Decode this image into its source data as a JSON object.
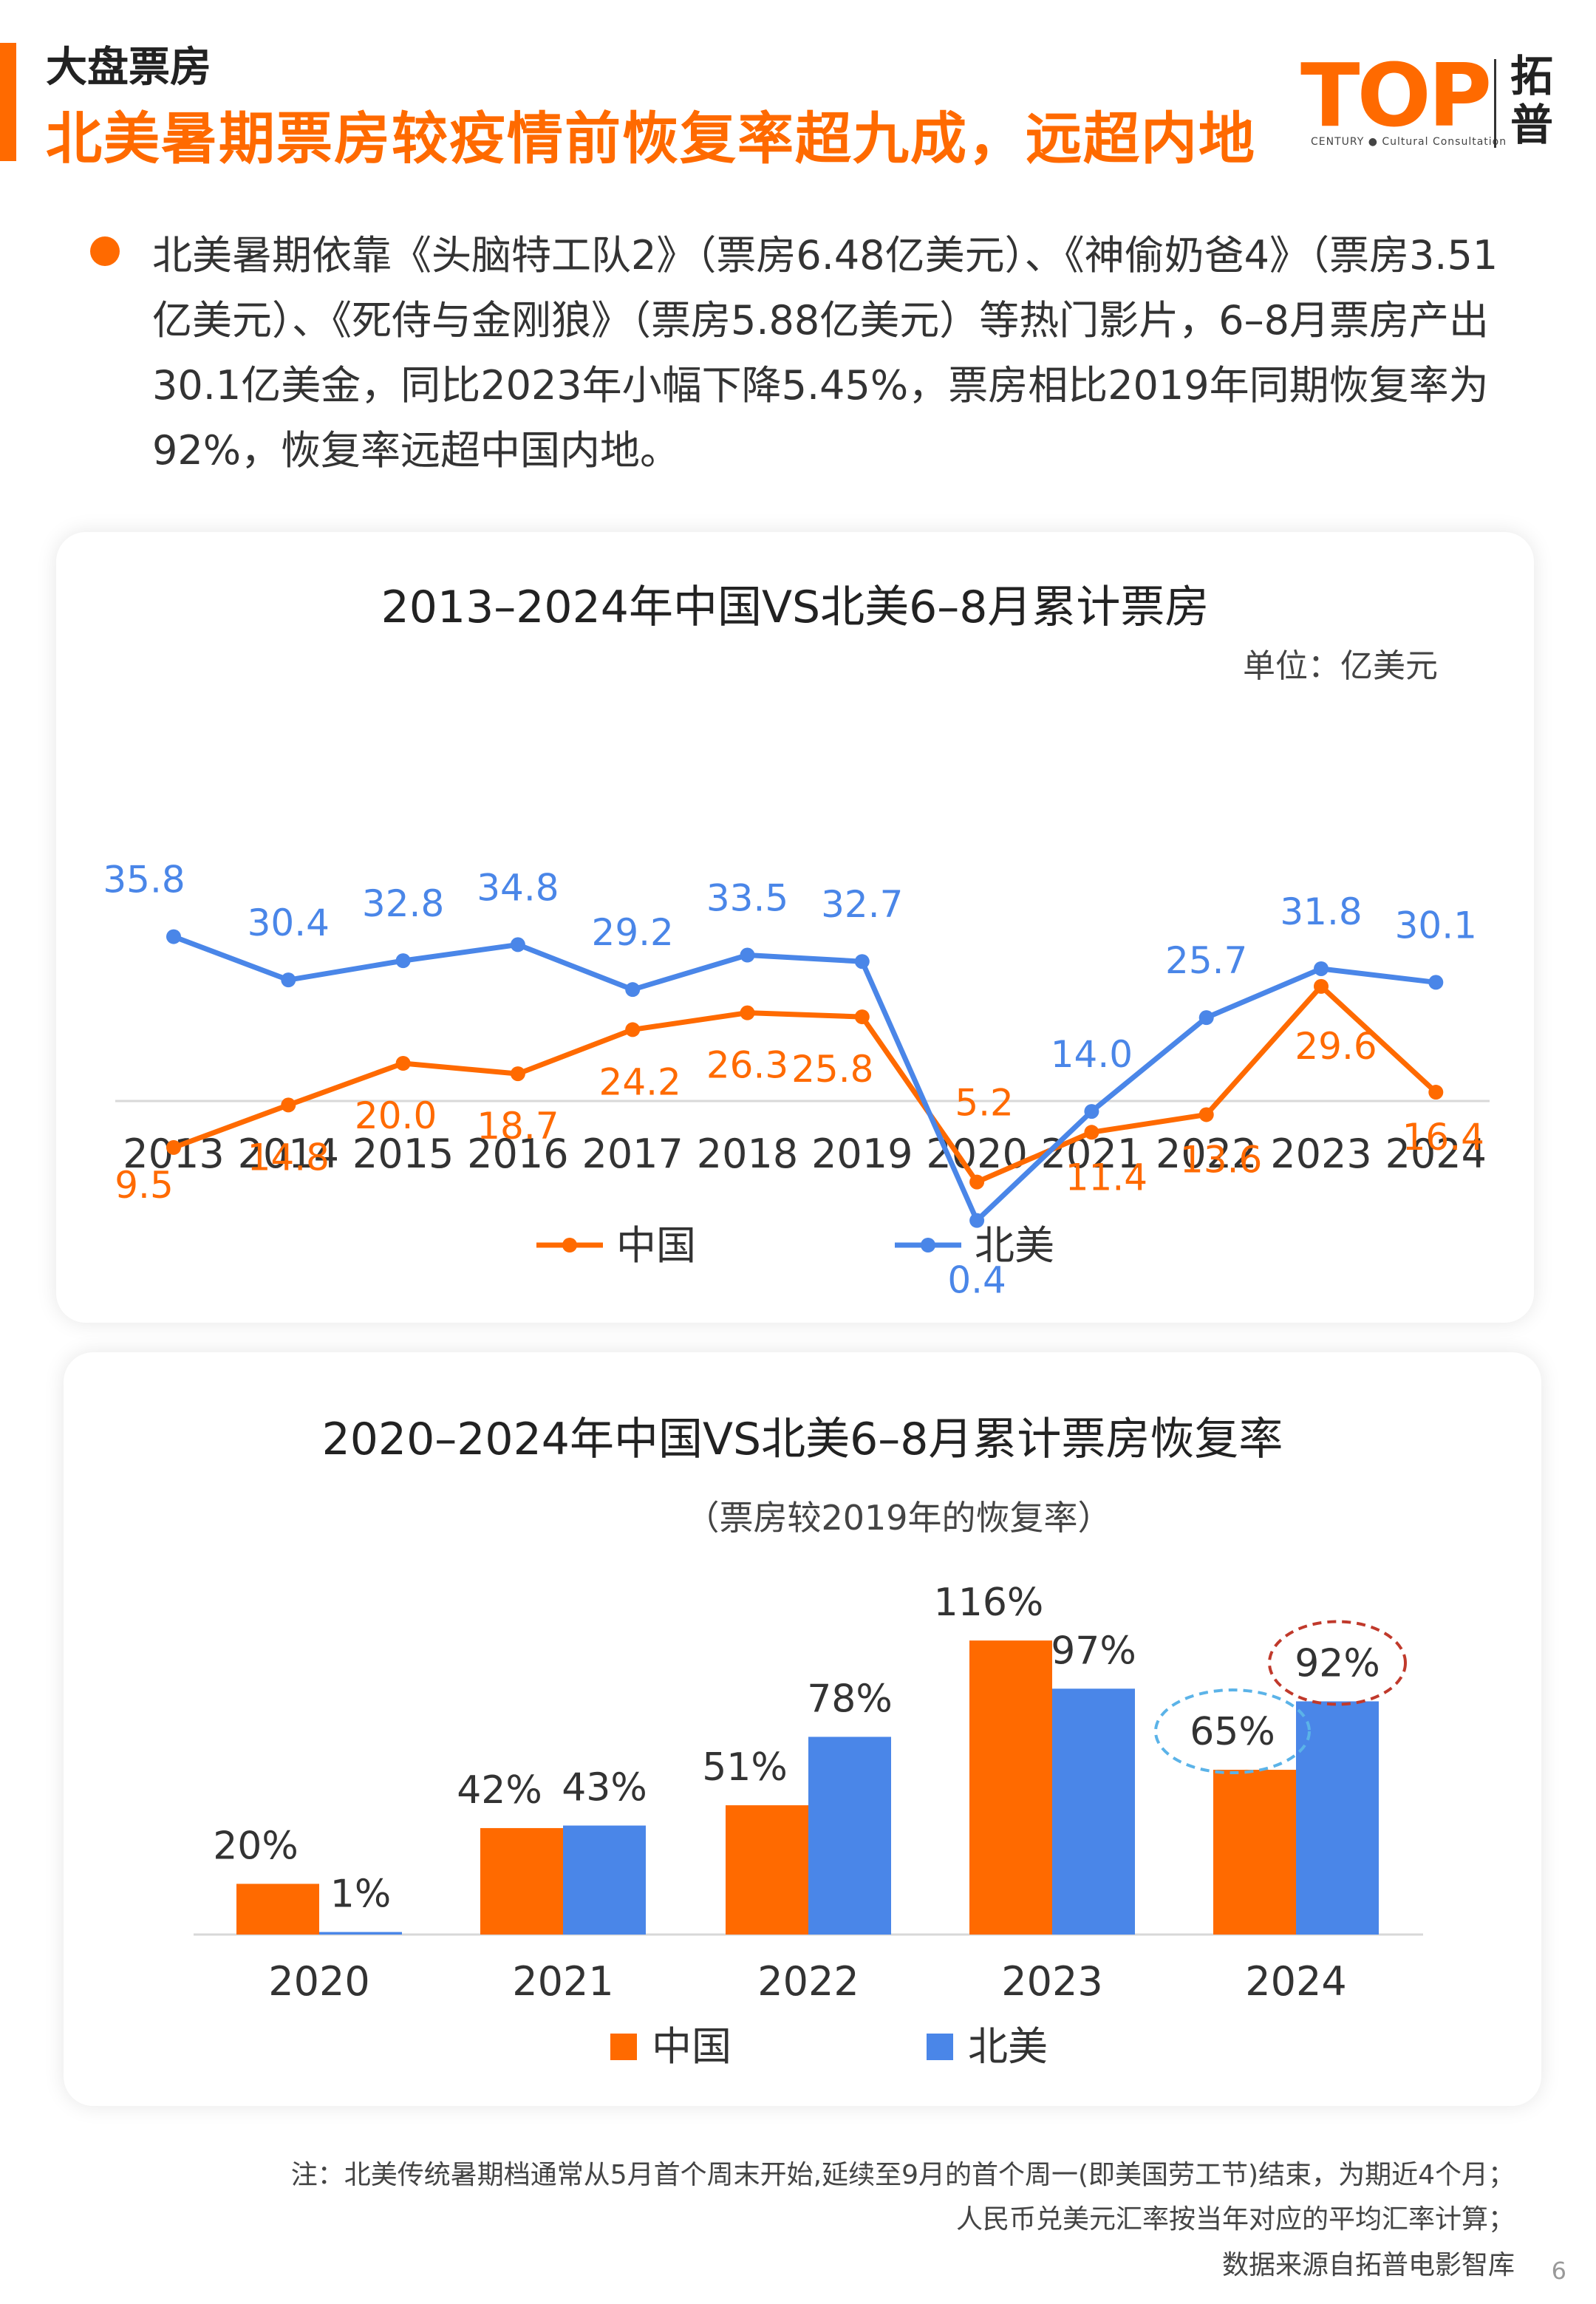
{
  "header": {
    "section": "大盘票房",
    "title": "北美暑期票房较疫情前恢复率超九成，远超内地"
  },
  "logo": {
    "mark": "TOP",
    "sub": "CENTURY ● Cultural Consultation",
    "cn_line1": "拓",
    "cn_line2": "普"
  },
  "intro": "北美暑期依靠《头脑特工队2》（票房6.48亿美元）、《神偷奶爸4》（票房3.51亿美元）、《死侍与金刚狼》（票房5.88亿美元）等热门影片，6–8月票房产出30.1亿美金，同比2023年小幅下降5.45%，票房相比2019年同期恢复率为92%，恢复率远超中国内地。",
  "colors": {
    "china": "#ff6a00",
    "north_america": "#4a86e8",
    "accent": "#ff6a00"
  },
  "chart_data": [
    {
      "type": "line",
      "title": "2013–2024年中国VS北美6–8月累计票房",
      "unit": "单位：亿美元",
      "x": [
        "2013",
        "2014",
        "2015",
        "2016",
        "2017",
        "2018",
        "2019",
        "2020",
        "2021",
        "2022",
        "2023",
        "2024"
      ],
      "series": [
        {
          "name": "中国",
          "values": [
            9.5,
            14.8,
            20.0,
            18.7,
            24.2,
            26.3,
            25.8,
            5.2,
            11.4,
            13.6,
            29.6,
            16.4
          ]
        },
        {
          "name": "北美",
          "values": [
            35.8,
            30.4,
            32.8,
            34.8,
            29.2,
            33.5,
            32.7,
            0.4,
            14.0,
            25.7,
            31.8,
            30.1
          ]
        }
      ],
      "value_labels": {
        "中国": [
          "9.5",
          "14.8",
          "20.0",
          "18.7",
          "24.2",
          "26.3",
          "25.8",
          "5.2",
          "11.4",
          "13.6",
          "29.6",
          "16.4"
        ],
        "北美": [
          "35.8",
          "30.4",
          "32.8",
          "34.8",
          "29.2",
          "33.5",
          "32.7",
          "0.4",
          "14.0",
          "25.7",
          "31.8",
          "30.1"
        ]
      },
      "legend_position": "bottom-center",
      "grid": false
    },
    {
      "type": "bar",
      "title": "2020–2024年中国VS北美6–8月累计票房恢复率",
      "subtitle": "（票房较2019年的恢复率）",
      "categories": [
        "2020",
        "2021",
        "2022",
        "2023",
        "2024"
      ],
      "series": [
        {
          "name": "中国",
          "values": [
            20,
            42,
            51,
            116,
            65
          ]
        },
        {
          "name": "北美",
          "values": [
            1,
            43,
            78,
            97,
            92
          ]
        }
      ],
      "value_labels": {
        "中国": [
          "20%",
          "42%",
          "51%",
          "116%",
          "65%"
        ],
        "北美": [
          "1%",
          "43%",
          "78%",
          "97%",
          "92%"
        ]
      },
      "highlighted": [
        "2024 中国 65%",
        "2024 北美 92%"
      ],
      "legend_position": "bottom-center",
      "grid": false
    }
  ],
  "notes": [
    "注：北美传统暑期档通常从5月首个周末开始,延续至9月的首个周一(即美国劳工节)结束，为期近4个月；",
    "人民币兑美元汇率按当年对应的平均汇率计算；",
    "数据来源自拓普电影智库"
  ],
  "page_number": "6"
}
